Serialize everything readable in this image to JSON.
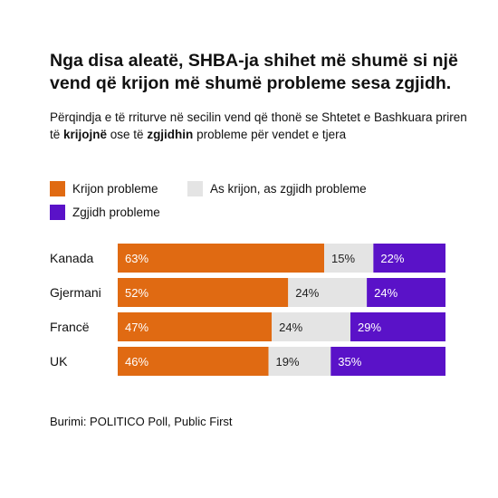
{
  "title": "Nga disa aleatë, SHBA-ja shihet më shumë si një vend që krijon më shumë probleme sesa zgjidh.",
  "subtitle": {
    "part1": "Përqindja e të rriturve në secilin vend që thonë se Shtetet e Bashkuara priren të ",
    "bold1": "krijojnë",
    "part2": " ose të ",
    "bold2": "zgjidhin",
    "part3": " probleme për vendet e tjera"
  },
  "source": "Burimi: POLITICO Poll, Public First",
  "colors": {
    "creates": "#e06a12",
    "neither": "#e4e4e4",
    "solves": "#5a12c8"
  },
  "chart_data": {
    "type": "bar",
    "orientation": "horizontal",
    "stacked": true,
    "categories": [
      "Kanada",
      "Gjermani",
      "Francë",
      "UK"
    ],
    "series": [
      {
        "name": "Krijon probleme",
        "color": "#e06a12",
        "values": [
          63,
          52,
          47,
          46
        ]
      },
      {
        "name": "As krijon, as zgjidh probleme",
        "color": "#e4e4e4",
        "values": [
          15,
          24,
          24,
          19
        ]
      },
      {
        "name": "Zgjidh probleme",
        "color": "#5a12c8",
        "values": [
          22,
          24,
          29,
          35
        ]
      }
    ],
    "value_suffix": "%",
    "legend_position": "top-left",
    "grid": false
  }
}
